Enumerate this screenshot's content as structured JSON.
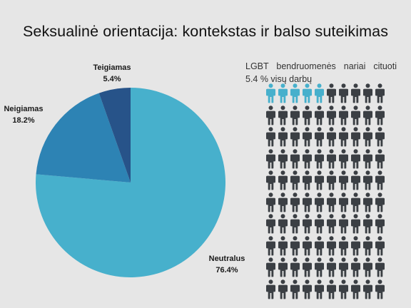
{
  "title": "Seksualinė orientacija: kontekstas ir balso suteikimas",
  "chart_data": {
    "type": "pie",
    "title": "Seksualinė orientacija: kontekstas ir balso suteikimas",
    "slices": [
      {
        "label": "Neutralus",
        "value": 76.4,
        "value_label": "76.4%",
        "color": "#47b0cc"
      },
      {
        "label": "Neigiamas",
        "value": 18.2,
        "value_label": "18.2%",
        "color": "#2d83b4"
      },
      {
        "label": "Teigiamas",
        "value": 5.4,
        "value_label": "5.4%",
        "color": "#275389"
      }
    ]
  },
  "pictogram": {
    "line1": "LGBT bendruomenės nariai cituoti",
    "line2": "5.4 % visų darbų",
    "total": 100,
    "highlighted": 5,
    "highlight_color": "#47b0cc",
    "base_color": "#3b3f44"
  }
}
